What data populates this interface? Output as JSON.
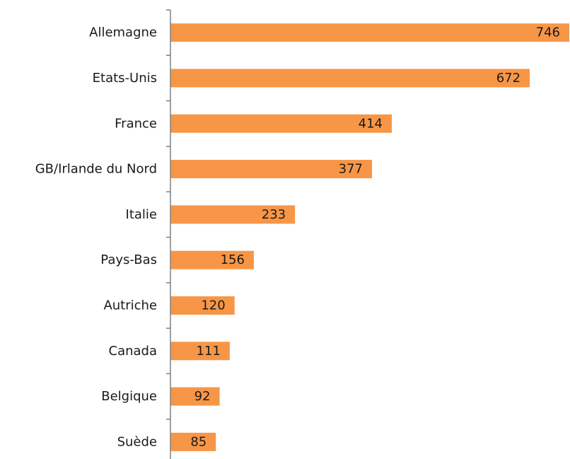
{
  "chart_data": {
    "type": "bar",
    "orientation": "horizontal",
    "categories": [
      "Allemagne",
      "Etats-Unis",
      "France",
      "GB/Irlande du Nord",
      "Italie",
      "Pays-Bas",
      "Autriche",
      "Canada",
      "Belgique",
      "Suède"
    ],
    "values": [
      746,
      672,
      414,
      377,
      233,
      156,
      120,
      111,
      92,
      85
    ],
    "value_labels": [
      "746",
      "672",
      "414",
      "377",
      "233",
      "156",
      "120",
      "111",
      "92",
      "85"
    ],
    "title": "",
    "xlabel": "",
    "ylabel": "",
    "xlim": [
      0,
      746
    ],
    "grid": false,
    "bar_color": "#f79646",
    "axis_color": "#808080"
  }
}
